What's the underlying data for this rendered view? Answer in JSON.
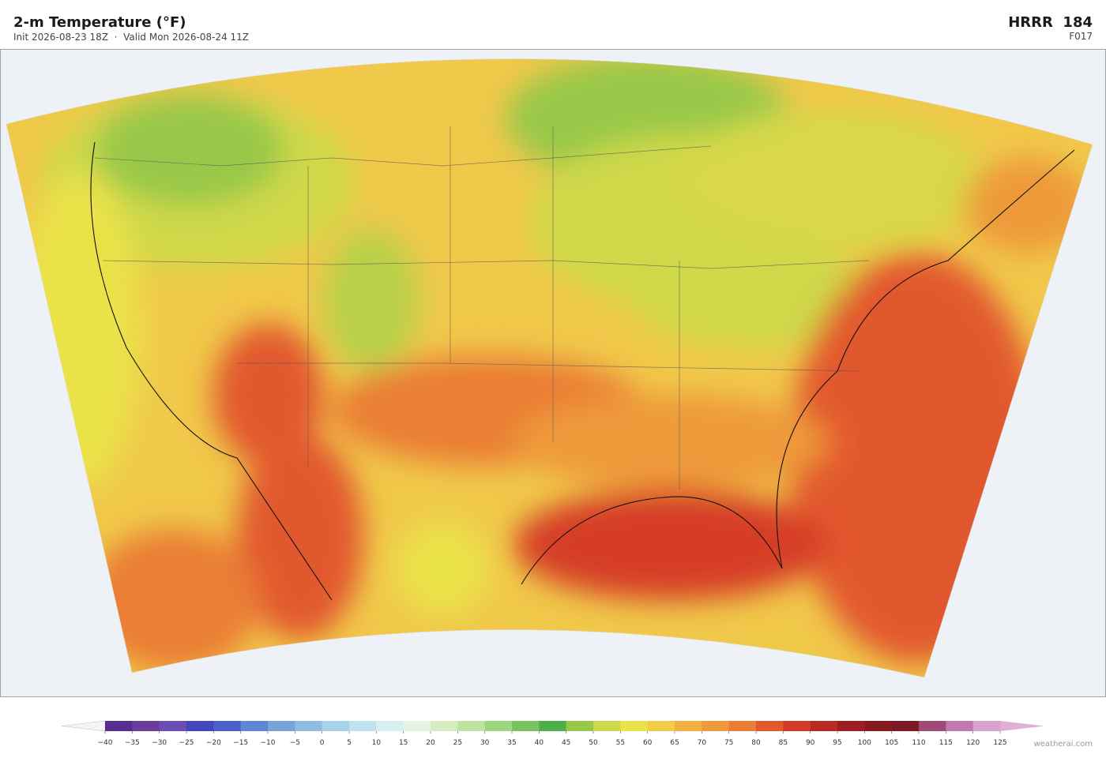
{
  "header": {
    "title": "2-m Temperature  (°F)",
    "subtitle": "Init 2026-08-23 18Z  ·  Valid Mon 2026-08-24 11Z",
    "model": "HRRR  184",
    "forecast_hour": "F017"
  },
  "colorbar": {
    "ticks": [
      {
        "value": -40,
        "label": "−40"
      },
      {
        "value": -35,
        "label": "−35"
      },
      {
        "value": -30,
        "label": "−30"
      },
      {
        "value": -25,
        "label": "−25"
      },
      {
        "value": -20,
        "label": "−20"
      },
      {
        "value": -15,
        "label": "−15"
      },
      {
        "value": -10,
        "label": "−10"
      },
      {
        "value": -5,
        "label": "−5"
      },
      0,
      5,
      10,
      15,
      20,
      25,
      30,
      35,
      40,
      45,
      50,
      55,
      60,
      65,
      70,
      75,
      80,
      85,
      90,
      95,
      100,
      105,
      110,
      115,
      120,
      125
    ],
    "colors": [
      "#5a2d91",
      "#6a3d9a",
      "#6b4fb0",
      "#4448b8",
      "#4a62c8",
      "#5f86d0",
      "#78a2d8",
      "#90bce0",
      "#a8d2e8",
      "#c0e2ee",
      "#d8eff2",
      "#e4f4e4",
      "#d4ecc0",
      "#bde3a0",
      "#9cd67e",
      "#78c45e",
      "#4caf4a",
      "#98c84a",
      "#cfd84a",
      "#ebe24a",
      "#f2cc48",
      "#f2b040",
      "#ee9a3a",
      "#ea7e34",
      "#e2582e",
      "#d03c28",
      "#b82a24",
      "#9c1e22",
      "#841a1e",
      "#7a1a24",
      "#a04a78",
      "#c07ab0",
      "#d8a2cc"
    ],
    "under_color": "#f4f4f8",
    "over_color": "#e0aed6"
  },
  "footer": {
    "credit": "weatherai.com"
  }
}
